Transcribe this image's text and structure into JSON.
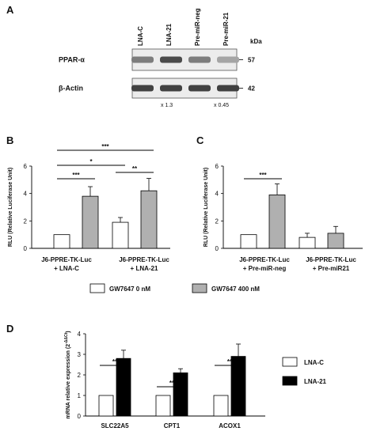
{
  "panel_a": {
    "letter": "A",
    "lanes": [
      "LNA-C",
      "LNA-21",
      "Pre-miR-neg",
      "Pre-miR-21"
    ],
    "kda_label": "kDa",
    "bands": [
      {
        "name": "PPAR-α",
        "kda": "57",
        "intensity": [
          0.55,
          0.8,
          0.55,
          0.35
        ]
      },
      {
        "name": "β-Actin",
        "kda": "42",
        "intensity": [
          0.85,
          0.85,
          0.85,
          0.85
        ]
      }
    ],
    "fold_changes": [
      "x 1.3",
      "x 0.45"
    ]
  },
  "panel_b": {
    "letter": "B"
  },
  "panel_c": {
    "letter": "C"
  },
  "panel_d": {
    "letter": "D"
  },
  "legend_bc": {
    "items": [
      {
        "label": "GW7647 0 nM",
        "color": "#ffffff"
      },
      {
        "label": "GW7647 400 nM",
        "color": "#b0b0b0"
      }
    ]
  },
  "legend_d": {
    "items": [
      {
        "label": "LNA-C",
        "color": "#ffffff"
      },
      {
        "label": "LNA-21",
        "color": "#000000"
      }
    ]
  },
  "chart_data": [
    {
      "panel": "B",
      "type": "bar",
      "ylabel": "RLU (Relative Luciferase Unit)",
      "ylim": [
        0,
        6
      ],
      "yticks": [
        0,
        2,
        4,
        6
      ],
      "groups": [
        [
          "J6-PPRE-TK-Luc",
          "+ LNA-C"
        ],
        [
          "J6-PPRE-TK-Luc",
          "+ LNA-21"
        ]
      ],
      "series": [
        {
          "values": [
            1.0,
            1.9
          ],
          "errors": [
            0,
            0.35
          ],
          "color": "#ffffff"
        },
        {
          "values": [
            3.8,
            4.2
          ],
          "errors": [
            0.7,
            0.9
          ],
          "color": "#b0b0b0"
        }
      ],
      "significance": [
        {
          "from": [
            0,
            0
          ],
          "to": [
            0,
            1
          ],
          "label": "***"
        },
        {
          "from": [
            0,
            0
          ],
          "to": [
            1,
            0
          ],
          "label": "*"
        },
        {
          "from": [
            1,
            0
          ],
          "to": [
            1,
            1
          ],
          "label": "**"
        },
        {
          "from": [
            0,
            0
          ],
          "to": [
            1,
            1
          ],
          "label": "***"
        }
      ]
    },
    {
      "panel": "C",
      "type": "bar",
      "ylabel": "RLU (Relative Luciferase Unit)",
      "ylim": [
        0,
        6
      ],
      "yticks": [
        0,
        2,
        4,
        6
      ],
      "groups": [
        [
          "J6-PPRE-TK-Luc",
          "+ Pre-miR-neg"
        ],
        [
          "J6-PPRE-TK-Luc",
          "+ Pre-miR21"
        ]
      ],
      "series": [
        {
          "values": [
            1.0,
            0.8
          ],
          "errors": [
            0,
            0.3
          ],
          "color": "#ffffff"
        },
        {
          "values": [
            3.9,
            1.1
          ],
          "errors": [
            0.8,
            0.5
          ],
          "color": "#b0b0b0"
        }
      ],
      "significance": [
        {
          "from": [
            0,
            0
          ],
          "to": [
            0,
            1
          ],
          "label": "***"
        }
      ]
    },
    {
      "panel": "D",
      "type": "bar",
      "ylabel": "mRNA relative expression (2",
      "ylabel_sup": "-ΔΔCt",
      "ylabel_end": ")",
      "ylim": [
        0,
        4
      ],
      "yticks": [
        0,
        1,
        2,
        3,
        4
      ],
      "categories": [
        "SLC22A5",
        "CPT1",
        "ACOX1"
      ],
      "series": [
        {
          "values": [
            1.0,
            1.0,
            1.0
          ],
          "errors": [
            0,
            0,
            0
          ],
          "color": "#ffffff"
        },
        {
          "values": [
            2.8,
            2.1,
            2.9
          ],
          "errors": [
            0.4,
            0.2,
            0.6
          ],
          "color": "#000000"
        }
      ],
      "significance": [
        {
          "category": 0,
          "label": "**"
        },
        {
          "category": 1,
          "label": "**"
        },
        {
          "category": 2,
          "label": "**"
        }
      ]
    }
  ]
}
